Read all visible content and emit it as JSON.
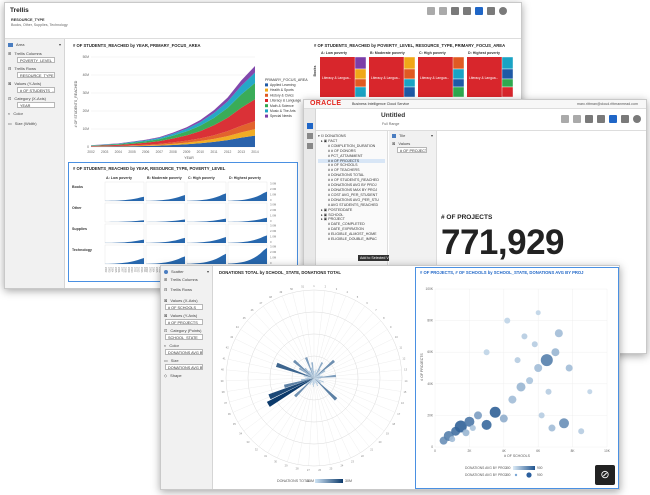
{
  "trellis": {
    "title": "Trellis",
    "subtitle_label": "RESOURCE_TYPE",
    "subtitle_value": "Books, Other, Supplies, Technology",
    "grammar": {
      "viz_type": "Area",
      "trellis_columns_label": "Trellis Columns",
      "trellis_columns_value": "POVERTY_LEVEL",
      "trellis_rows_label": "Trellis Rows",
      "trellis_rows_value": "RESOURCE_TYPE",
      "values_label": "Values (Y-Axis)",
      "values_value": "# OF STUDENTS_...",
      "category_label": "Category (X-Axis)",
      "category_value": "YEAR",
      "color_label": "Color",
      "size_label": "Size (Width)"
    },
    "area_chart": {
      "title": "# OF STUDENTS_REACHED by YEAR, PRIMARY_FOCUS_AREA",
      "ylabel": "# OF STUDENTS_REACHED",
      "xlabel": "YEAR",
      "legend_title": "PRIMARY_FOCUS_AREA",
      "legend": [
        {
          "label": "Applied Learning",
          "color": "#1f5aa6"
        },
        {
          "label": "Health & Sports",
          "color": "#f0a818"
        },
        {
          "label": "History & Civics",
          "color": "#e05a22"
        },
        {
          "label": "Literacy & Language",
          "color": "#d8262c"
        },
        {
          "label": "Math & Science",
          "color": "#2fa84f"
        },
        {
          "label": "Music & The Arts",
          "color": "#1aa3c4"
        },
        {
          "label": "Special Needs",
          "color": "#7b3ea8"
        }
      ],
      "years": [
        "2002",
        "2003",
        "2004",
        "2005",
        "2006",
        "2007",
        "2008",
        "2009",
        "2010",
        "2011",
        "2012",
        "2013",
        "2014"
      ],
      "yticks": [
        "0",
        "10M",
        "20M",
        "30M",
        "40M",
        "50M"
      ]
    },
    "heat_chart": {
      "title": "# OF STUDENTS_REACHED by POVERTY_LEVEL, RESOURCE_TYPE, PRIMARY_FOCUS_AREA",
      "row_label": "Books",
      "columns": [
        "A: Low poverty",
        "B: Moderate poverty",
        "C: High poverty",
        "D: Highest poverty"
      ],
      "cell_labels": [
        "Literacy & Langua...",
        "Literacy & Langua...",
        "Literacy & Langua...",
        "Literacy & Langua..."
      ]
    },
    "small_multiples": {
      "title": "# OF STUDENTS_REACHED by YEAR, RESOURCE_TYPE, POVERTY_LEVEL",
      "columns": [
        "A: Low poverty",
        "B: Moderate poverty",
        "C: High poverty",
        "D: Highest poverty"
      ],
      "rows": [
        "Books",
        "Other",
        "Supplies",
        "Technology"
      ],
      "yticks": [
        "0",
        "1.0M",
        "2.0M",
        "3.0M"
      ]
    }
  },
  "untitled": {
    "brand": "ORACLE",
    "product": "Business Intelligence Cloud Service",
    "title": "Untitled",
    "subtitle": "Full Range",
    "user": "marc.rittman@cloud.rittmanmead.com",
    "tree_root": "DONATIONS",
    "tree_items": [
      "FACT",
      "COMPLETION_DURATION",
      "# OF DONORS",
      "PCT_ATTAINMENT",
      "# OF PROJECTS",
      "# OF SCHOOLS",
      "# OF TEACHERS",
      "DONATIONS TOTAL",
      "# OF STUDENTS_REACHED",
      "DONATIONS AVG BY PROJ",
      "DONATIONS MAX BY PROJ",
      "COST AVG_PER_STUDENT",
      "DONATIONS AVG_PER_STU",
      "AVG STUDENTS_REACHED",
      "POSTEDDATE",
      "SCHOOL",
      "PROJECT",
      "DATE_COMPLETED",
      "DATE_EXPIRATION",
      "ELIGIBLE_ALMOST_HOME",
      "ELIGIBLE_DOUBLE_IMPAC"
    ],
    "tree_tooltip": "Add to Selected Vis",
    "tile_type": "Tile",
    "values_label": "Values",
    "values_value": "# OF PROJECTS",
    "kpi_label": "# OF PROJECTS",
    "kpi_value": "771,929"
  },
  "scatter": {
    "grammar": {
      "viz_type": "Scatter",
      "trellis_columns_label": "Trellis Columns",
      "trellis_rows_label": "Trellis Rows",
      "values_x_label": "Values (X-Axis)",
      "values_x_value": "# OF SCHOOLS",
      "values_y_label": "Values (Y-Axis)",
      "values_y_value": "# OF PROJECTS",
      "category_label": "Category (Points)",
      "category_value": "SCHOOL_STATE",
      "color_label": "Color",
      "color_value": "DONATIONS AVG B...",
      "size_label": "Size",
      "size_value": "DONATIONS AVG B...",
      "shape_label": "Shape"
    },
    "polar": {
      "title": "DONATIONS TOTAL by SCHOOL_STATE, DONATIONS TOTAL",
      "legend_label": "DONATIONS TOTAL",
      "legend_min": "15M",
      "legend_max": "30M"
    },
    "bubble": {
      "title": "# OF PROJECTS, # OF SCHOOLS by SCHOOL_STATE, DONATIONS AVG BY PROJ",
      "xlabel": "# OF SCHOOLS",
      "ylabel": "# OF PROJECTS",
      "xticks": [
        "0",
        "2K",
        "4K",
        "6K",
        "8K",
        "10K"
      ],
      "yticks": [
        "0",
        "20K",
        "40K",
        "60K",
        "80K",
        "100K"
      ],
      "legend_color_label": "DONATIONS AVG BY PROJ",
      "legend_size_label": "DONATIONS AVG BY PROJ",
      "legend_min": "300",
      "legend_max": "900",
      "legend_size_min": "300",
      "legend_size_max": "900"
    }
  }
}
